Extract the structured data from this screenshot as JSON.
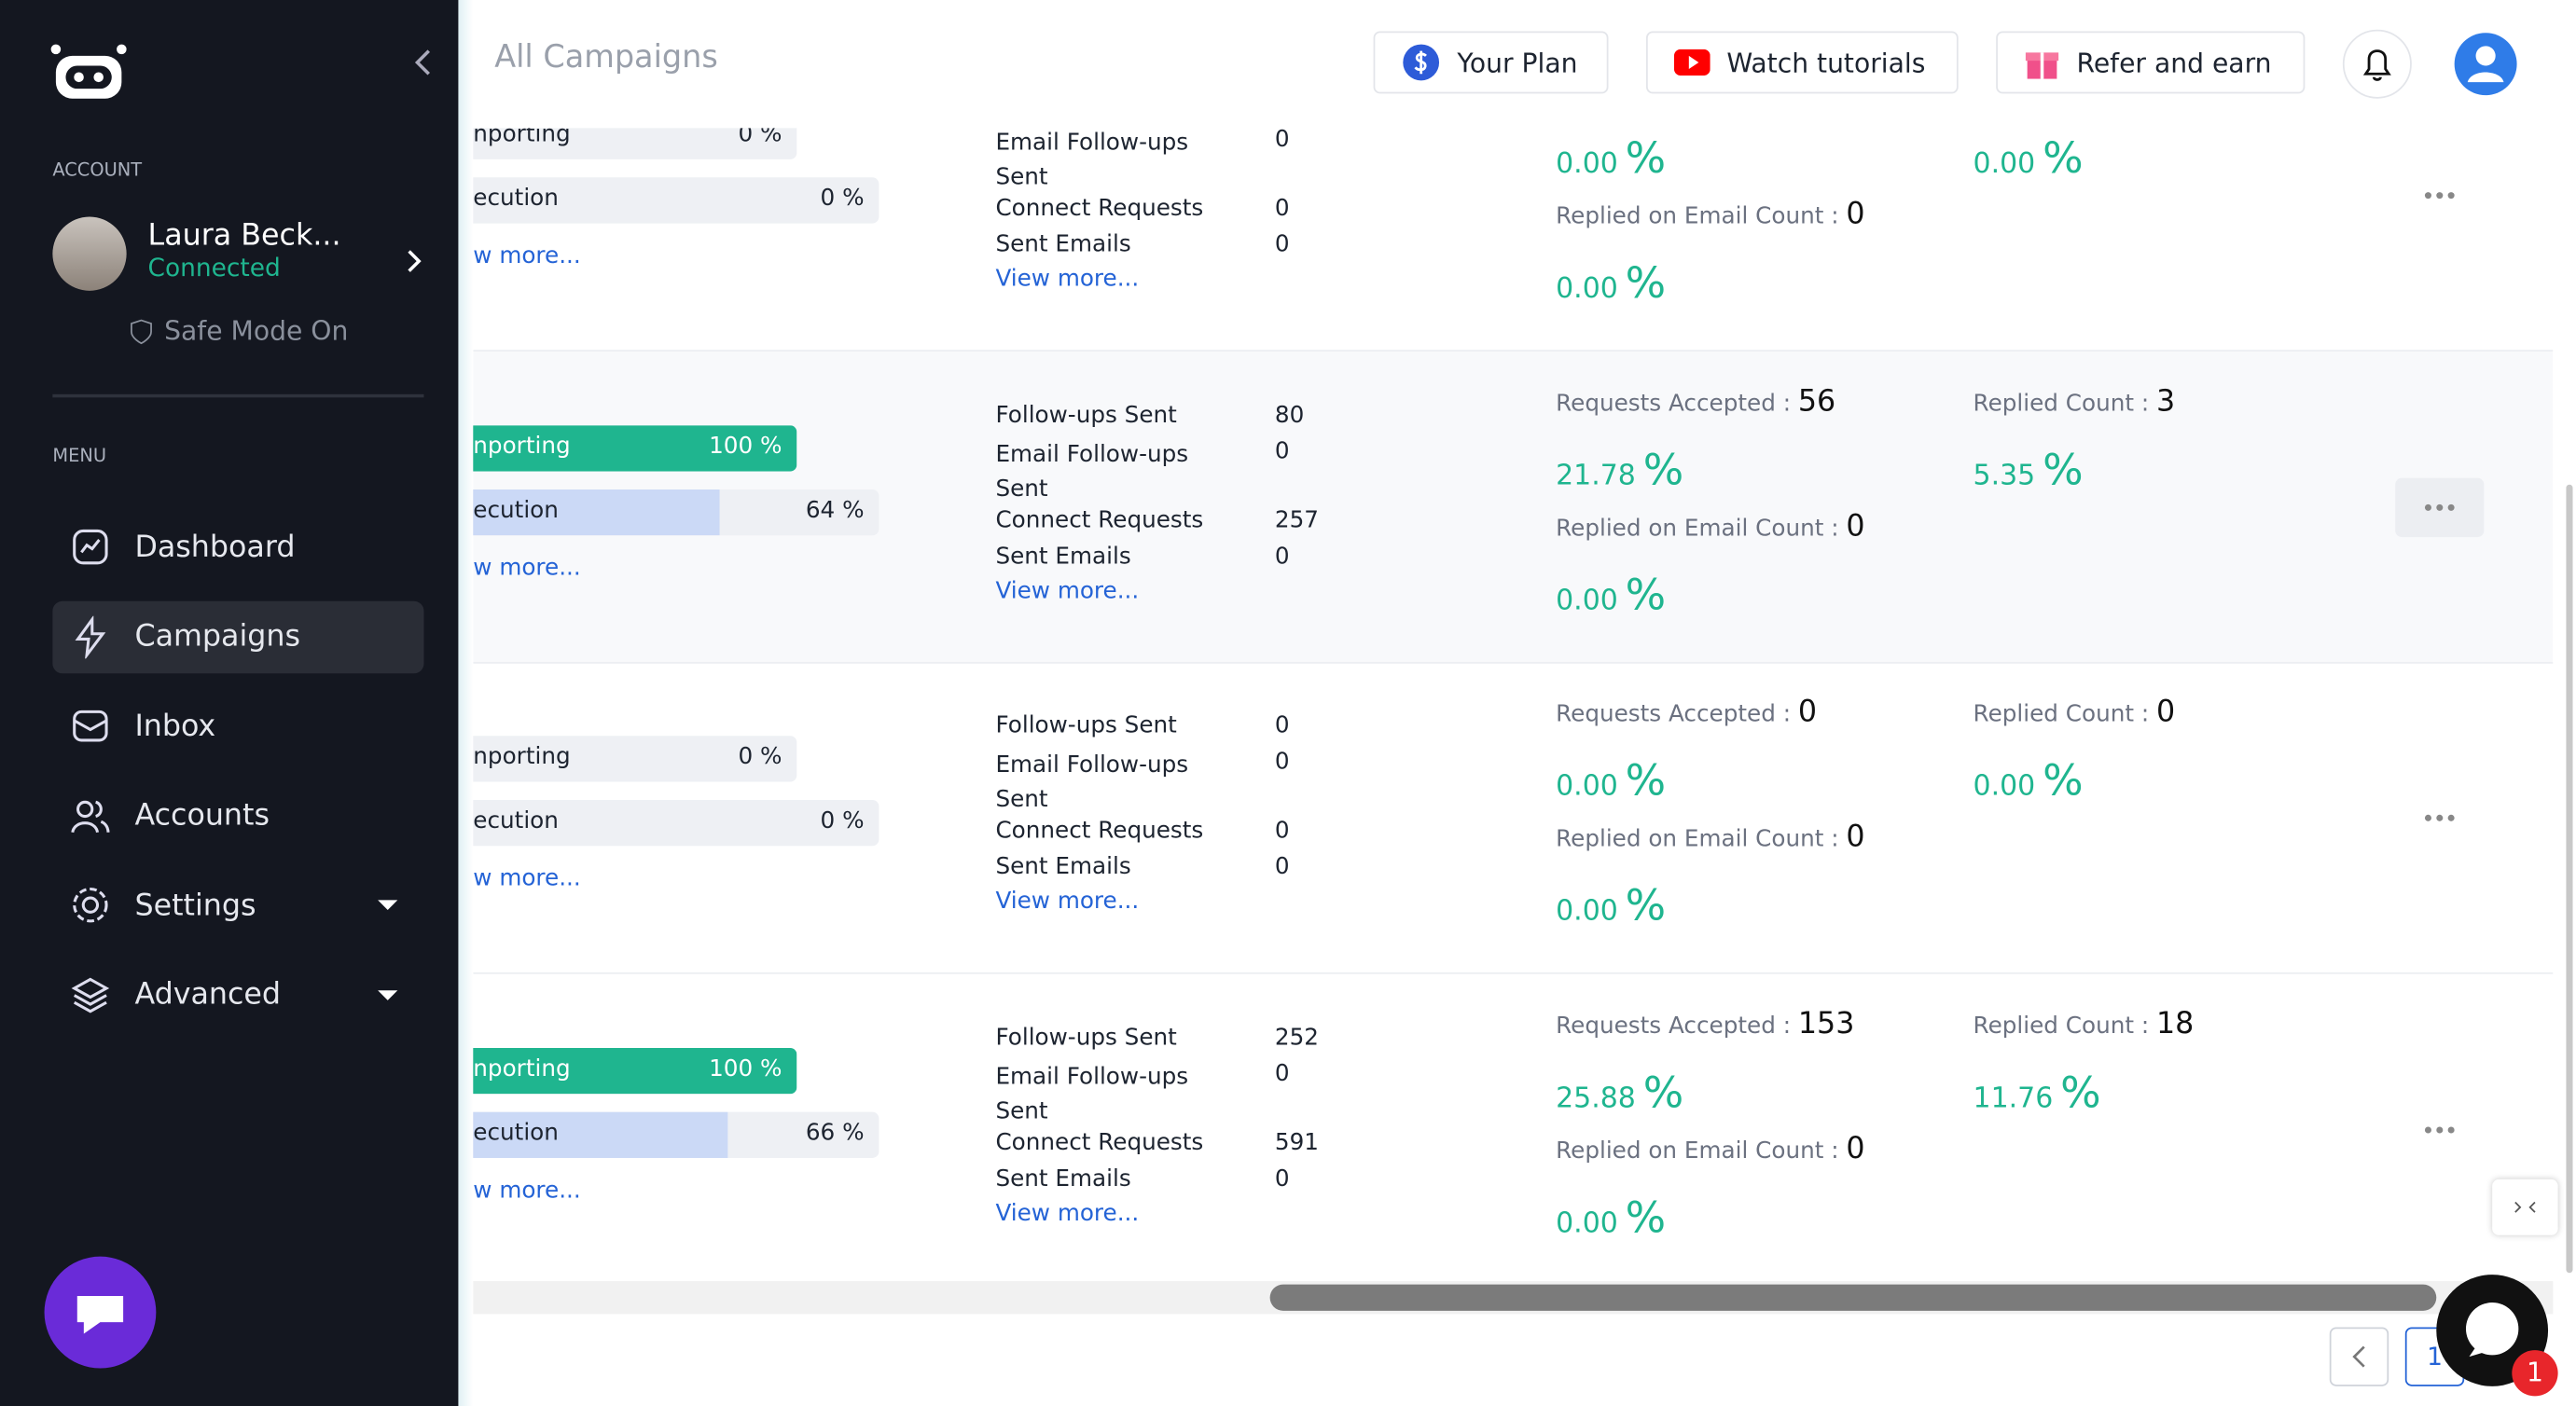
{
  "sidebar": {
    "account_heading": "ACCOUNT",
    "user_name": "Laura Beck...",
    "status": "Connected",
    "safe_mode": "Safe Mode On",
    "menu_heading": "MENU",
    "menu": [
      "Dashboard",
      "Campaigns",
      "Inbox",
      "Accounts",
      "Settings",
      "Advanced"
    ]
  },
  "header": {
    "title": "All Campaigns",
    "buttons": [
      "Your Plan",
      "Watch tutorials",
      "Refer and earn"
    ]
  },
  "labels": {
    "importing": "nporting",
    "execution": "ecution",
    "view_more_short": "w more...",
    "follow_ups": "Follow-ups Sent",
    "email_follow_ups": "Email Follow-ups Sent",
    "connect_requests": "Connect Requests",
    "sent_emails": "Sent Emails",
    "view_more": "View more...",
    "requests_accepted": "Requests Accepted :",
    "replied_email": "Replied on Email Count :",
    "replied": "Replied Count :",
    "percent": "%"
  },
  "rows": [
    {
      "importing": {
        "value": 0,
        "label": "0 %"
      },
      "execution": {
        "value": 0,
        "label": "0 %"
      },
      "follow_ups": null,
      "email_follow_ups": "0",
      "connect_requests": "0",
      "sent_emails": "0",
      "requests_accepted": null,
      "accepted_rate": "0.00",
      "replied_email_count": "0",
      "replied_email_rate": "0.00",
      "replied_count": null,
      "replied_rate": "0.00"
    },
    {
      "importing": {
        "value": 100,
        "label": "100 %"
      },
      "execution": {
        "value": 64,
        "label": "64 %"
      },
      "follow_ups": "80",
      "email_follow_ups": "0",
      "connect_requests": "257",
      "sent_emails": "0",
      "requests_accepted": "56",
      "accepted_rate": "21.78",
      "replied_email_count": "0",
      "replied_email_rate": "0.00",
      "replied_count": "3",
      "replied_rate": "5.35"
    },
    {
      "importing": {
        "value": 0,
        "label": "0 %"
      },
      "execution": {
        "value": 0,
        "label": "0 %"
      },
      "follow_ups": "0",
      "email_follow_ups": "0",
      "connect_requests": "0",
      "sent_emails": "0",
      "requests_accepted": "0",
      "accepted_rate": "0.00",
      "replied_email_count": "0",
      "replied_email_rate": "0.00",
      "replied_count": "0",
      "replied_rate": "0.00"
    },
    {
      "importing": {
        "value": 100,
        "label": "100 %"
      },
      "execution": {
        "value": 66,
        "label": "66 %"
      },
      "follow_ups": "252",
      "email_follow_ups": "0",
      "connect_requests": "591",
      "sent_emails": "0",
      "requests_accepted": "153",
      "accepted_rate": "25.88",
      "replied_email_count": "0",
      "replied_email_rate": "0.00",
      "replied_count": "18",
      "replied_rate": "11.76"
    }
  ],
  "pagination": {
    "page": "1"
  },
  "chat_badge": "1"
}
